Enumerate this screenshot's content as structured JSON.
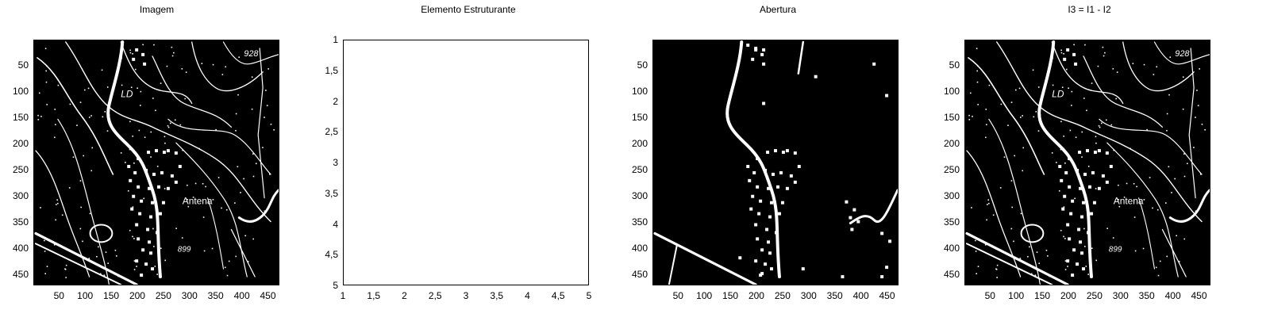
{
  "chart_data": [
    {
      "type": "heatmap",
      "title": "Imagem",
      "image": "binary topographic map",
      "colormap": [
        "#000000",
        "#ffffff"
      ],
      "xlim": [
        1,
        472
      ],
      "ylim": [
        1,
        472
      ],
      "x_ticks": [
        "50",
        "100",
        "150",
        "200",
        "250",
        "300",
        "350",
        "400",
        "450"
      ],
      "y_ticks": [
        "50",
        "100",
        "150",
        "200",
        "250",
        "300",
        "350",
        "400",
        "450"
      ],
      "annotations": [
        "Antena",
        "928",
        "899"
      ]
    },
    {
      "type": "heatmap",
      "title": "Elemento Estruturante",
      "image": "all-white 5x5 structuring element",
      "colormap": [
        "#000000",
        "#ffffff"
      ],
      "xlim": [
        1,
        5
      ],
      "ylim": [
        1,
        5
      ],
      "x_ticks": [
        "1",
        "1,5",
        "2",
        "2,5",
        "3",
        "3,5",
        "4",
        "4,5",
        "5"
      ],
      "y_ticks": [
        "1",
        "1,5",
        "2",
        "2,5",
        "3",
        "3,5",
        "4",
        "4,5",
        "5"
      ]
    },
    {
      "type": "heatmap",
      "title": "Abertura",
      "image": "morphological opening result",
      "colormap": [
        "#000000",
        "#ffffff"
      ],
      "xlim": [
        1,
        472
      ],
      "ylim": [
        1,
        472
      ],
      "x_ticks": [
        "50",
        "100",
        "150",
        "200",
        "250",
        "300",
        "350",
        "400",
        "450"
      ],
      "y_ticks": [
        "50",
        "100",
        "150",
        "200",
        "250",
        "300",
        "350",
        "400",
        "450"
      ]
    },
    {
      "type": "heatmap",
      "title": "I3 = I1 - I2",
      "image": "difference image",
      "colormap": [
        "#000000",
        "#ffffff"
      ],
      "xlim": [
        1,
        472
      ],
      "ylim": [
        1,
        472
      ],
      "x_ticks": [
        "50",
        "100",
        "150",
        "200",
        "250",
        "300",
        "350",
        "400",
        "450"
      ],
      "y_ticks": [
        "50",
        "100",
        "150",
        "200",
        "250",
        "300",
        "350",
        "400",
        "450"
      ],
      "annotations": [
        "Antena",
        "928",
        "899"
      ]
    }
  ]
}
